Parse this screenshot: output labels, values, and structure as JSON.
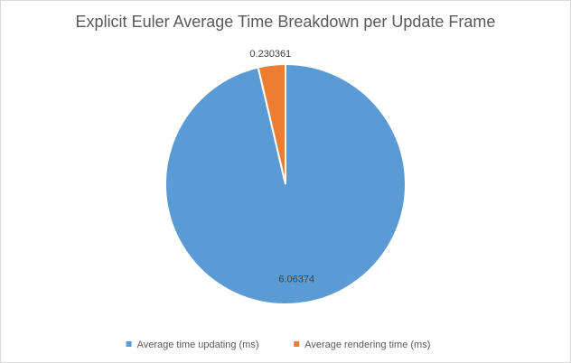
{
  "chart_data": {
    "type": "pie",
    "title": "Explicit Euler Average Time Breakdown per Update Frame",
    "categories": [
      "Average time updating (ms)",
      "Average rendering time (ms)"
    ],
    "values": [
      6.06374,
      0.230361
    ],
    "data_labels": [
      "6.06374",
      "0.230361"
    ],
    "colors": [
      "#5b9bd5",
      "#ed7d31"
    ],
    "legend_position": "bottom"
  }
}
